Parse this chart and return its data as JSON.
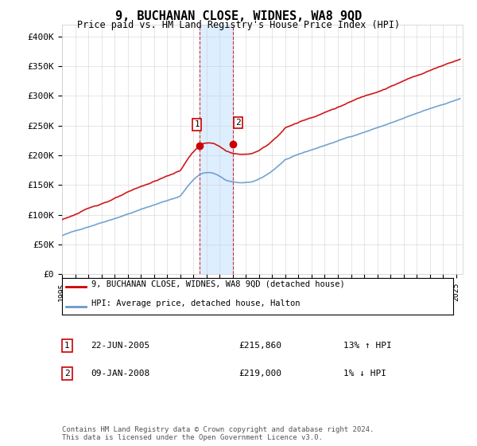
{
  "title": "9, BUCHANAN CLOSE, WIDNES, WA8 9QD",
  "subtitle": "Price paid vs. HM Land Registry's House Price Index (HPI)",
  "legend_line1": "9, BUCHANAN CLOSE, WIDNES, WA8 9QD (detached house)",
  "legend_line2": "HPI: Average price, detached house, Halton",
  "footnote1": "Contains HM Land Registry data © Crown copyright and database right 2024.",
  "footnote2": "This data is licensed under the Open Government Licence v3.0.",
  "table": [
    {
      "num": "1",
      "date": "22-JUN-2005",
      "price": "£215,860",
      "hpi": "13% ↑ HPI"
    },
    {
      "num": "2",
      "date": "09-JAN-2008",
      "price": "£219,000",
      "hpi": "1% ↓ HPI"
    }
  ],
  "sale1_date": 2005.47,
  "sale1_price": 215860,
  "sale2_date": 2008.03,
  "sale2_price": 219000,
  "highlight_start": 2005.47,
  "highlight_end": 2008.03,
  "red_color": "#cc0000",
  "blue_color": "#6699cc",
  "highlight_color": "#ddeeff",
  "grid_color": "#cccccc",
  "ylim": [
    0,
    420000
  ],
  "xlim_start": 1995.0,
  "xlim_end": 2025.5
}
